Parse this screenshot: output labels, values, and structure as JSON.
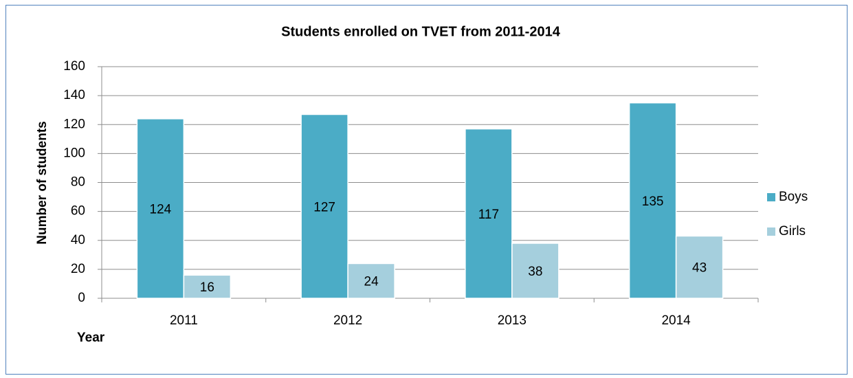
{
  "chart_data": {
    "type": "bar",
    "title": "Students enrolled on TVET from 2011-2014",
    "x_label": "Year",
    "y_label": "Number of students",
    "categories": [
      "2011",
      "2012",
      "2013",
      "2014"
    ],
    "series": [
      {
        "name": "Boys",
        "color": "#4bacc6",
        "values": [
          124,
          127,
          117,
          135
        ]
      },
      {
        "name": "Girls",
        "color": "#a5cfdd",
        "values": [
          16,
          24,
          38,
          43
        ]
      }
    ],
    "ylim": [
      0,
      160
    ],
    "yticks": [
      0,
      20,
      40,
      60,
      80,
      100,
      120,
      140,
      160
    ],
    "grid": true,
    "legend": "right"
  }
}
